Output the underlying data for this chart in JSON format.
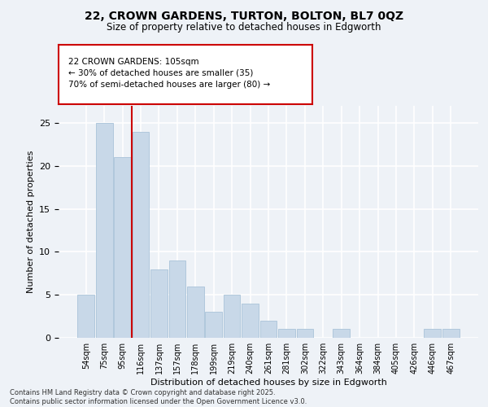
{
  "title1": "22, CROWN GARDENS, TURTON, BOLTON, BL7 0QZ",
  "title2": "Size of property relative to detached houses in Edgworth",
  "xlabel": "Distribution of detached houses by size in Edgworth",
  "ylabel": "Number of detached properties",
  "categories": [
    "54sqm",
    "75sqm",
    "95sqm",
    "116sqm",
    "137sqm",
    "157sqm",
    "178sqm",
    "199sqm",
    "219sqm",
    "240sqm",
    "261sqm",
    "281sqm",
    "302sqm",
    "322sqm",
    "343sqm",
    "364sqm",
    "384sqm",
    "405sqm",
    "426sqm",
    "446sqm",
    "467sqm"
  ],
  "values": [
    5,
    25,
    21,
    24,
    8,
    9,
    6,
    3,
    5,
    4,
    2,
    1,
    1,
    0,
    1,
    0,
    0,
    0,
    0,
    1,
    1
  ],
  "bar_color": "#c8d8e8",
  "bar_edge_color": "#b0c8dc",
  "vline_x": 2.5,
  "vline_color": "#cc0000",
  "annotation_text": "22 CROWN GARDENS: 105sqm\n← 30% of detached houses are smaller (35)\n70% of semi-detached houses are larger (80) →",
  "annotation_box_color": "#ffffff",
  "annotation_box_edge": "#cc0000",
  "ylim": [
    0,
    27
  ],
  "yticks": [
    0,
    5,
    10,
    15,
    20,
    25
  ],
  "background_color": "#eef2f7",
  "grid_color": "#ffffff",
  "footer": "Contains HM Land Registry data © Crown copyright and database right 2025.\nContains public sector information licensed under the Open Government Licence v3.0."
}
